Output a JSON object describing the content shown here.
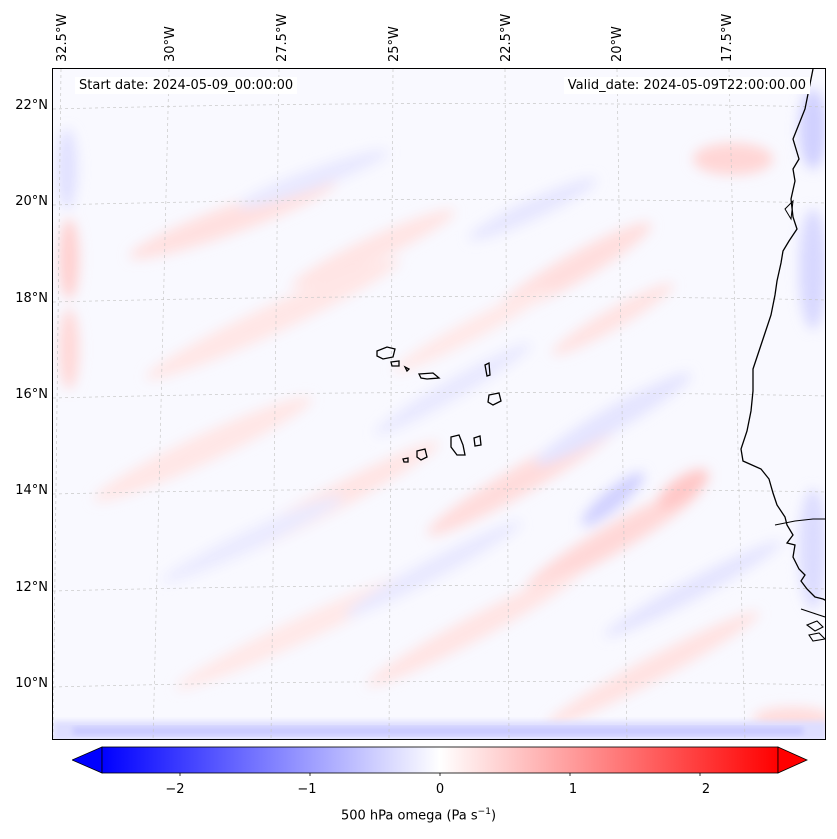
{
  "header": {
    "start_date": "Start date: 2024-05-09_00:00:00",
    "valid_date": "Valid_date: 2024-05-09T22:00:00.00"
  },
  "axes": {
    "lon_labels": [
      "32.5°W",
      "30°W",
      "27.5°W",
      "25°W",
      "22.5°W",
      "20°W",
      "17.5°W"
    ],
    "lat_labels": [
      "22°N",
      "20°N",
      "18°N",
      "16°N",
      "14°N",
      "12°N",
      "10°N"
    ]
  },
  "colorbar": {
    "ticks": [
      "−2",
      "−1",
      "0",
      "1",
      "2"
    ],
    "tick_values": [
      -2,
      -1,
      0,
      1,
      2
    ],
    "range": [
      -2.6,
      2.6
    ],
    "label_main": "500 hPa omega (Pa s",
    "label_exp": "−1",
    "label_close": ")",
    "colors": {
      "low": "#0000ff",
      "mid": "#ffffff",
      "high": "#ff0000"
    }
  },
  "map": {
    "coastline_color": "#000000",
    "grid_color": "#c8c8c8"
  }
}
